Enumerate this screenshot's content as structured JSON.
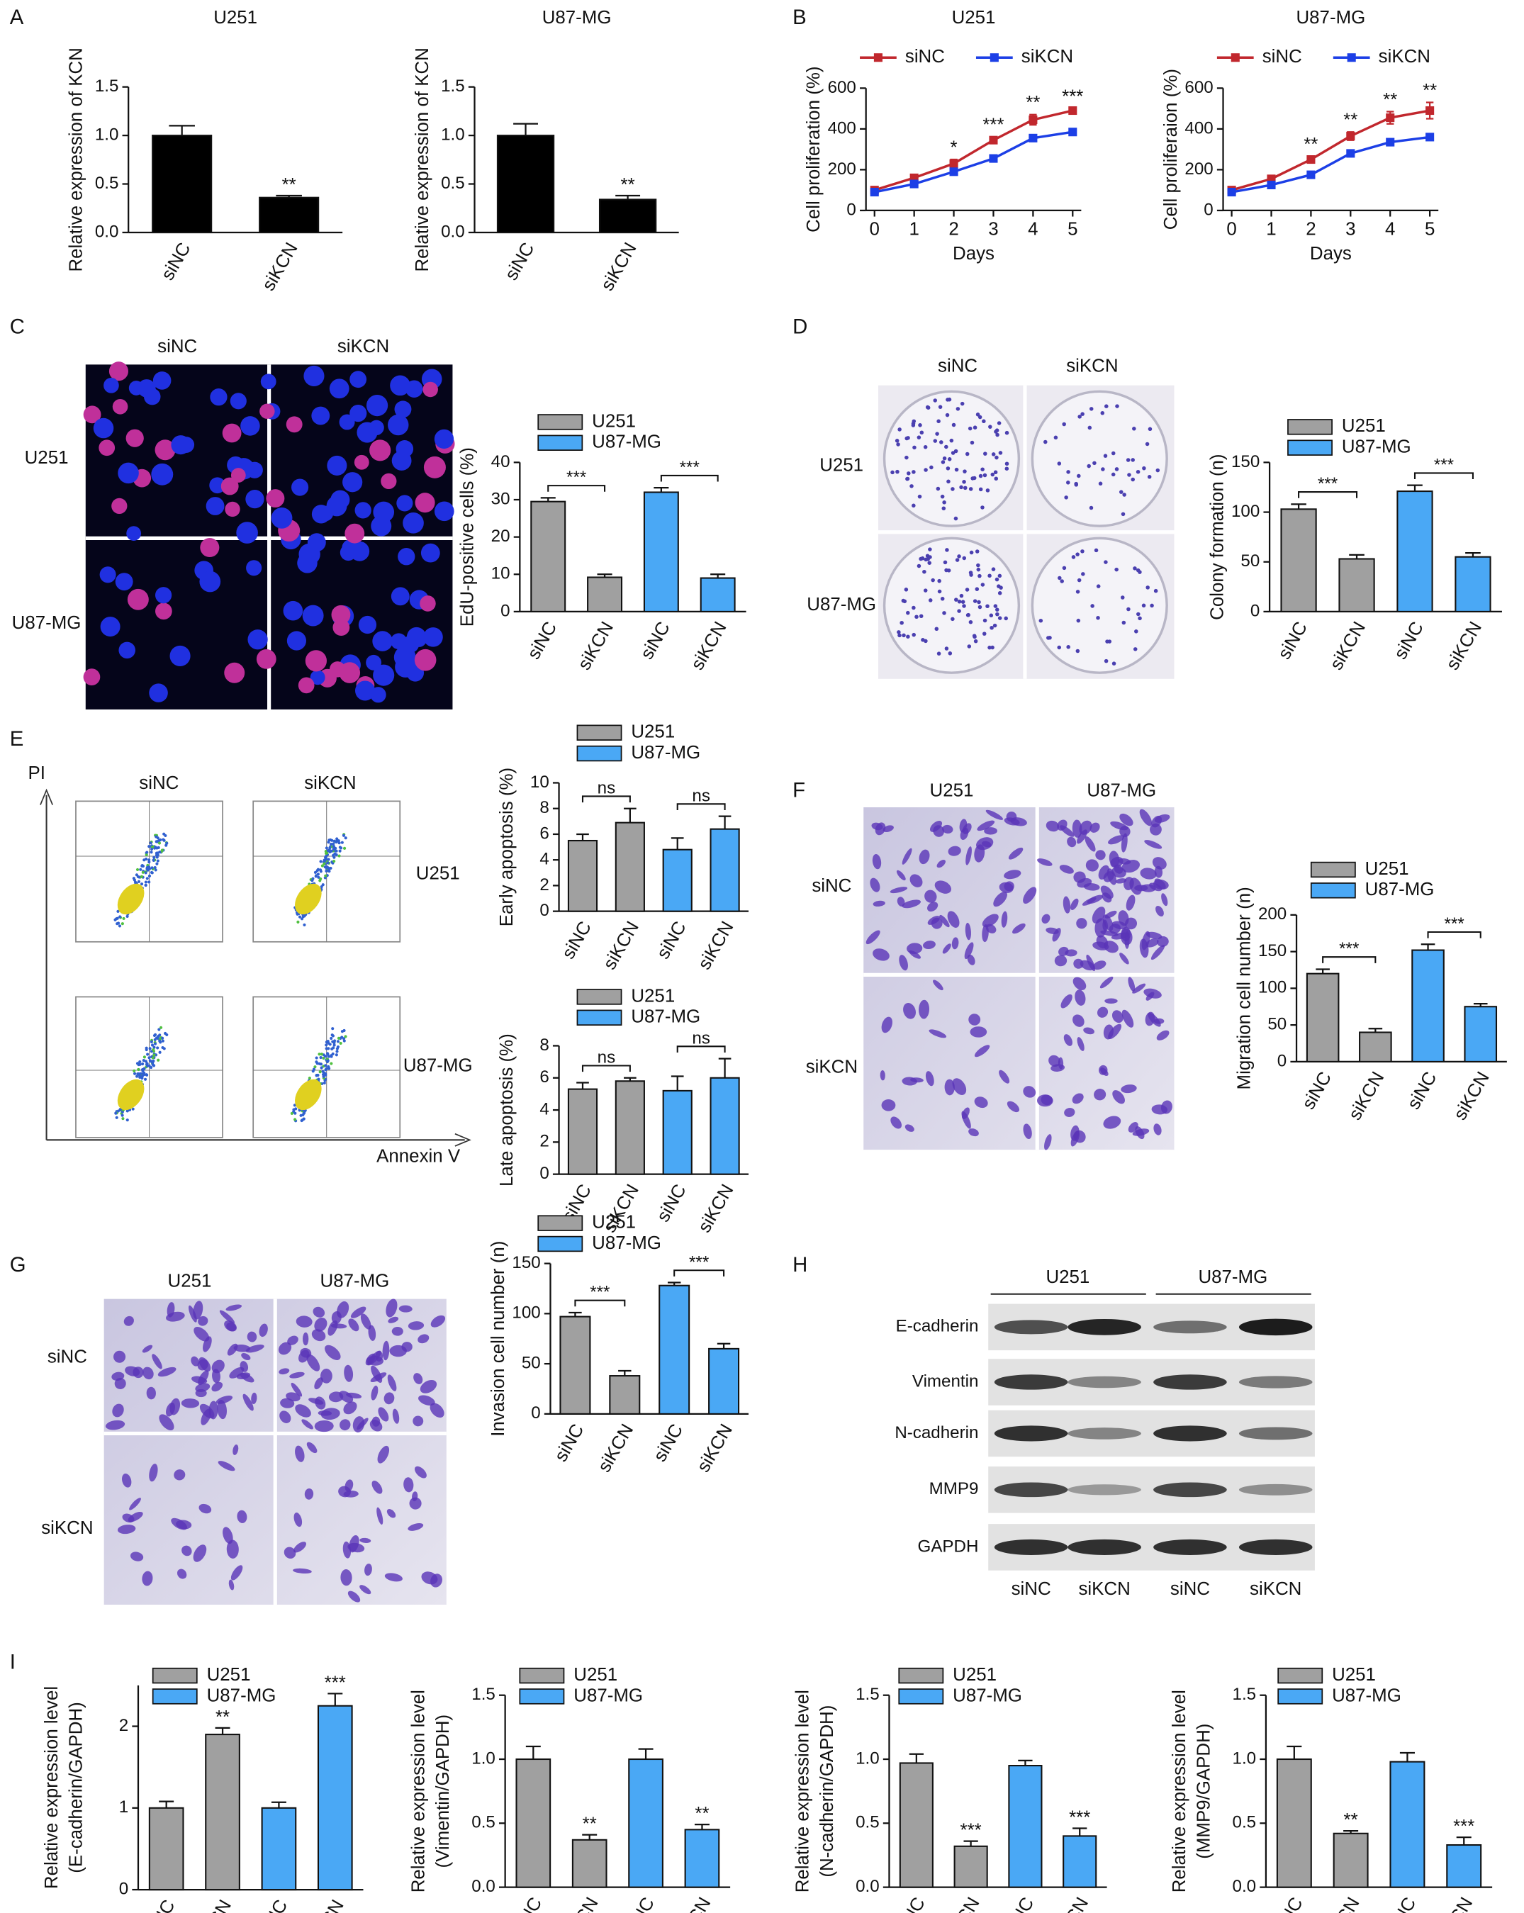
{
  "figure": {
    "panels": [
      "A",
      "B",
      "C",
      "D",
      "E",
      "F",
      "G",
      "H",
      "I"
    ],
    "C_images": {
      "columns": [
        "siNC",
        "siKCN"
      ],
      "rows": [
        "U251",
        "U87-MG"
      ]
    },
    "D_images": {
      "columns": [
        "siNC",
        "siKCN"
      ],
      "rows": [
        "U251",
        "U87-MG"
      ]
    },
    "E_images": {
      "columns": [
        "siNC",
        "siKCN"
      ],
      "rows": [
        "U251",
        "U87-MG"
      ],
      "y_axis": "PI",
      "x_axis": "Annexin V"
    },
    "F_images": {
      "columns": [
        "U251",
        "U87-MG"
      ],
      "rows": [
        "siNC",
        "siKCN"
      ]
    },
    "G_images": {
      "columns": [
        "U251",
        "U87-MG"
      ],
      "rows": [
        "siNC",
        "siKCN"
      ]
    },
    "H_blot": {
      "groups": [
        "U251",
        "U87-MG"
      ],
      "proteins": [
        "E-cadherin",
        "Vimentin",
        "N-cadherin",
        "MMP9",
        "GAPDH"
      ],
      "lanes": [
        "siNC",
        "siKCN",
        "siNC",
        "siKCN"
      ]
    }
  },
  "chart_data": [
    {
      "type": "bar",
      "title": "U251",
      "ylabel": [
        "Relative expression of KCN"
      ],
      "categories": [
        "siNC",
        "siKCN"
      ],
      "values": [
        1.0,
        0.36
      ],
      "errors": [
        0.1,
        0.02
      ],
      "annotations": [
        null,
        "**"
      ],
      "color": "#000000",
      "ylim": [
        0,
        1.5
      ],
      "yticks": [
        {
          "value": 0,
          "label": "0.0"
        },
        0.5,
        {
          "value": 1,
          "label": "1.0"
        },
        1.5
      ]
    },
    {
      "type": "bar",
      "title": "U87-MG",
      "ylabel": [
        "Relative expression of KCN"
      ],
      "categories": [
        "siNC",
        "siKCN"
      ],
      "values": [
        1.0,
        0.34
      ],
      "errors": [
        0.12,
        0.04
      ],
      "annotations": [
        null,
        "**"
      ],
      "color": "#000000",
      "ylim": [
        0,
        1.5
      ],
      "yticks": [
        {
          "value": 0,
          "label": "0.0"
        },
        0.5,
        {
          "value": 1,
          "label": "1.0"
        },
        1.5
      ]
    },
    {
      "type": "line",
      "title": "U251",
      "xlabel": "Days",
      "ylabel": [
        "Cell proliferation (%)"
      ],
      "x": [
        0,
        1,
        2,
        3,
        4,
        5
      ],
      "xlim": [
        0,
        5
      ],
      "xticks": [
        0,
        1,
        2,
        3,
        4,
        5
      ],
      "ylim": [
        0,
        600
      ],
      "yticks": [
        0,
        200,
        400,
        600
      ],
      "series": [
        {
          "name": "siNC",
          "color": "#c1272d",
          "values": [
            100,
            160,
            230,
            345,
            445,
            490
          ],
          "errors": [
            10,
            15,
            20,
            15,
            25,
            10
          ],
          "annotations": [
            null,
            null,
            "*",
            "***",
            "**",
            "***"
          ]
        },
        {
          "name": "siKCN",
          "color": "#1c3fe6",
          "values": [
            90,
            130,
            190,
            255,
            355,
            385
          ],
          "errors": [
            5,
            10,
            10,
            10,
            15,
            8
          ]
        }
      ]
    },
    {
      "type": "line",
      "title": "U87-MG",
      "xlabel": "Days",
      "ylabel": [
        "Cell proliferaion (%)"
      ],
      "x": [
        0,
        1,
        2,
        3,
        4,
        5
      ],
      "xlim": [
        0,
        5
      ],
      "xticks": [
        0,
        1,
        2,
        3,
        4,
        5
      ],
      "ylim": [
        0,
        600
      ],
      "yticks": [
        0,
        200,
        400,
        600
      ],
      "series": [
        {
          "name": "siNC",
          "color": "#c1272d",
          "values": [
            100,
            155,
            250,
            365,
            455,
            490
          ],
          "errors": [
            10,
            15,
            15,
            20,
            30,
            40
          ],
          "annotations": [
            null,
            null,
            "**",
            "**",
            "**",
            "**"
          ]
        },
        {
          "name": "siKCN",
          "color": "#1c3fe6",
          "values": [
            90,
            125,
            175,
            280,
            335,
            360
          ],
          "errors": [
            5,
            10,
            15,
            15,
            15,
            15
          ]
        }
      ]
    },
    {
      "type": "bar",
      "ylabel": [
        "EdU-positive cells (%)"
      ],
      "categories": [
        "siNC",
        "siKCN",
        "siNC",
        "siKCN"
      ],
      "series": [
        {
          "name": "U251",
          "color": "#a0a0a0",
          "values": [
            29.5,
            9.2,
            null,
            null
          ],
          "errors": [
            1,
            0.8,
            null,
            null
          ]
        },
        {
          "name": "U87-MG",
          "color": "#4aa8f5",
          "values": [
            null,
            null,
            32,
            9
          ],
          "errors": [
            null,
            null,
            1.2,
            1
          ]
        }
      ],
      "ylim": [
        0,
        40
      ],
      "yticks": [
        0,
        10,
        20,
        30,
        40
      ],
      "brackets": [
        "***",
        "***"
      ]
    },
    {
      "type": "bar",
      "ylabel": [
        "Colony formation (n)"
      ],
      "categories": [
        "siNC",
        "siKCN",
        "siNC",
        "siKCN"
      ],
      "series": [
        {
          "name": "U251",
          "color": "#a0a0a0",
          "values": [
            103,
            53,
            null,
            null
          ],
          "errors": [
            5,
            4,
            null,
            null
          ]
        },
        {
          "name": "U87-MG",
          "color": "#4aa8f5",
          "values": [
            null,
            null,
            121,
            55
          ],
          "errors": [
            null,
            null,
            6,
            4
          ]
        }
      ],
      "ylim": [
        0,
        150
      ],
      "yticks": [
        0,
        50,
        100,
        150
      ],
      "brackets": [
        "***",
        "***"
      ]
    },
    {
      "type": "bar",
      "ylabel": [
        "Early apoptosis (%)"
      ],
      "categories": [
        "siNC",
        "siKCN",
        "siNC",
        "siKCN"
      ],
      "series": [
        {
          "name": "U251",
          "color": "#a0a0a0",
          "values": [
            5.5,
            6.9,
            null,
            null
          ],
          "errors": [
            0.5,
            1.1,
            null,
            null
          ]
        },
        {
          "name": "U87-MG",
          "color": "#4aa8f5",
          "values": [
            null,
            null,
            4.8,
            6.4
          ],
          "errors": [
            null,
            null,
            0.9,
            1.0
          ]
        }
      ],
      "ylim": [
        0,
        10
      ],
      "yticks": [
        0,
        2,
        4,
        6,
        8,
        10
      ],
      "brackets": [
        "ns",
        "ns"
      ]
    },
    {
      "type": "bar",
      "ylabel": [
        "Late apoptosis (%)"
      ],
      "categories": [
        "siNC",
        "siKCN",
        "siNC",
        "siKCN"
      ],
      "series": [
        {
          "name": "U251",
          "color": "#a0a0a0",
          "values": [
            5.3,
            5.8,
            null,
            null
          ],
          "errors": [
            0.4,
            0.2,
            null,
            null
          ]
        },
        {
          "name": "U87-MG",
          "color": "#4aa8f5",
          "values": [
            null,
            null,
            5.2,
            6.0
          ],
          "errors": [
            null,
            null,
            0.9,
            1.2
          ]
        }
      ],
      "ylim": [
        0,
        8
      ],
      "yticks": [
        0,
        2,
        4,
        6,
        8
      ],
      "brackets": [
        "ns",
        "ns"
      ]
    },
    {
      "type": "bar",
      "ylabel": [
        "Migration cell number (n)"
      ],
      "categories": [
        "siNC",
        "siKCN",
        "siNC",
        "siKCN"
      ],
      "series": [
        {
          "name": "U251",
          "color": "#a0a0a0",
          "values": [
            120,
            40,
            null,
            null
          ],
          "errors": [
            6,
            5,
            null,
            null
          ]
        },
        {
          "name": "U87-MG",
          "color": "#4aa8f5",
          "values": [
            null,
            null,
            152,
            75
          ],
          "errors": [
            null,
            null,
            8,
            4
          ]
        }
      ],
      "ylim": [
        0,
        200
      ],
      "yticks": [
        0,
        50,
        100,
        150,
        200
      ],
      "brackets": [
        "***",
        "***"
      ]
    },
    {
      "type": "bar",
      "ylabel": [
        "Invasion cell number (n)"
      ],
      "categories": [
        "siNC",
        "siKCN",
        "siNC",
        "siKCN"
      ],
      "series": [
        {
          "name": "U251",
          "color": "#a0a0a0",
          "values": [
            97,
            38,
            null,
            null
          ],
          "errors": [
            4,
            5,
            null,
            null
          ]
        },
        {
          "name": "U87-MG",
          "color": "#4aa8f5",
          "values": [
            null,
            null,
            128,
            65
          ],
          "errors": [
            null,
            null,
            3,
            5
          ]
        }
      ],
      "ylim": [
        0,
        150
      ],
      "yticks": [
        0,
        50,
        100,
        150
      ],
      "brackets": [
        "***",
        "***"
      ]
    },
    {
      "type": "bar",
      "ylabel": [
        "Relative expression level",
        "(E-cadherin/GAPDH)"
      ],
      "categories": [
        "siNC",
        "siKCN",
        "siNC",
        "siKCN"
      ],
      "series": [
        {
          "name": "U251",
          "color": "#a0a0a0",
          "values": [
            1.0,
            1.9,
            null,
            null
          ],
          "errors": [
            0.08,
            0.08,
            null,
            null
          ],
          "annotations": [
            null,
            "**",
            null,
            null
          ]
        },
        {
          "name": "U87-MG",
          "color": "#4aa8f5",
          "values": [
            null,
            null,
            1.0,
            2.25
          ],
          "errors": [
            null,
            null,
            0.07,
            0.15
          ],
          "annotations": [
            null,
            null,
            null,
            "***"
          ]
        }
      ],
      "ylim": [
        0,
        2.5
      ],
      "yticks": [
        0,
        1,
        2
      ]
    },
    {
      "type": "bar",
      "ylabel": [
        "Relative expression level",
        "(Vimentin/GAPDH)"
      ],
      "categories": [
        "siNC",
        "siKCN",
        "siNC",
        "siKCN"
      ],
      "series": [
        {
          "name": "U251",
          "color": "#a0a0a0",
          "values": [
            1.0,
            0.37,
            null,
            null
          ],
          "errors": [
            0.1,
            0.04,
            null,
            null
          ],
          "annotations": [
            null,
            "**",
            null,
            null
          ]
        },
        {
          "name": "U87-MG",
          "color": "#4aa8f5",
          "values": [
            null,
            null,
            1.0,
            0.45
          ],
          "errors": [
            null,
            null,
            0.08,
            0.04
          ],
          "annotations": [
            null,
            null,
            null,
            "**"
          ]
        }
      ],
      "ylim": [
        0,
        1.5
      ],
      "yticks": [
        {
          "value": 0,
          "label": "0.0"
        },
        0.5,
        {
          "value": 1,
          "label": "1.0"
        },
        1.5
      ]
    },
    {
      "type": "bar",
      "ylabel": [
        "Relative expression level",
        "(N-cadherin/GAPDH)"
      ],
      "categories": [
        "siNC",
        "siKCN",
        "siNC",
        "siKCN"
      ],
      "series": [
        {
          "name": "U251",
          "color": "#a0a0a0",
          "values": [
            0.97,
            0.32,
            null,
            null
          ],
          "errors": [
            0.07,
            0.04,
            null,
            null
          ],
          "annotations": [
            null,
            "***",
            null,
            null
          ]
        },
        {
          "name": "U87-MG",
          "color": "#4aa8f5",
          "values": [
            null,
            null,
            0.95,
            0.4
          ],
          "errors": [
            null,
            null,
            0.04,
            0.06
          ],
          "annotations": [
            null,
            null,
            null,
            "***"
          ]
        }
      ],
      "ylim": [
        0,
        1.5
      ],
      "yticks": [
        {
          "value": 0,
          "label": "0.0"
        },
        0.5,
        {
          "value": 1,
          "label": "1.0"
        },
        1.5
      ]
    },
    {
      "type": "bar",
      "ylabel": [
        "Relative expression level",
        "(MMP9/GAPDH)"
      ],
      "categories": [
        "siNC",
        "siKCN",
        "siNC",
        "siKCN"
      ],
      "series": [
        {
          "name": "U251",
          "color": "#a0a0a0",
          "values": [
            1.0,
            0.42,
            null,
            null
          ],
          "errors": [
            0.1,
            0.02,
            null,
            null
          ],
          "annotations": [
            null,
            "**",
            null,
            null
          ]
        },
        {
          "name": "U87-MG",
          "color": "#4aa8f5",
          "values": [
            null,
            null,
            0.98,
            0.33
          ],
          "errors": [
            null,
            null,
            0.07,
            0.06
          ],
          "annotations": [
            null,
            null,
            null,
            "***"
          ]
        }
      ],
      "ylim": [
        0,
        1.5
      ],
      "yticks": [
        {
          "value": 0,
          "label": "0.0"
        },
        0.5,
        {
          "value": 1,
          "label": "1.0"
        },
        1.5
      ]
    }
  ]
}
